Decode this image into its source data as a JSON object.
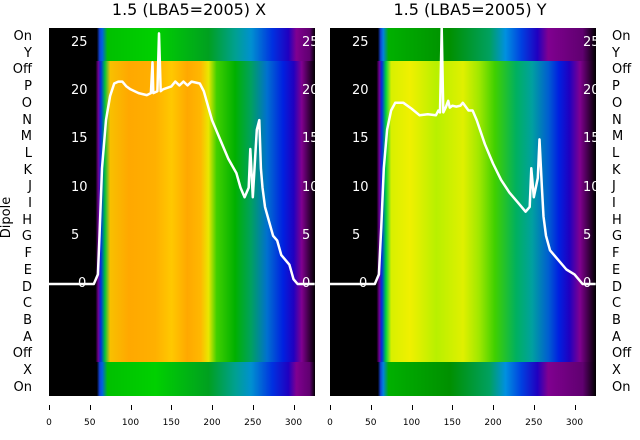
{
  "chart_data": [
    {
      "type": "line",
      "title": "1.5 (LBA5=2005) X",
      "ylabel": "Dipole",
      "xlim": [
        0,
        326
      ],
      "ylim": [
        0,
        25
      ],
      "x_ticks": [
        "0",
        "50",
        "100",
        "150",
        "200",
        "250",
        "300"
      ],
      "y_ticks": [
        "0",
        "5",
        "10",
        "15",
        "20",
        "25"
      ],
      "row_labels": [
        "On",
        "Y",
        "Off",
        "P",
        "O",
        "N",
        "M",
        "L",
        "K",
        "J",
        "I",
        "H",
        "G",
        "F",
        "E",
        "D",
        "C",
        "B",
        "A",
        "Off",
        "X",
        "On"
      ],
      "series": [
        {
          "name": "X",
          "color": "#ffffff",
          "points": [
            [
              0,
              0
            ],
            [
              55,
              0
            ],
            [
              60,
              1
            ],
            [
              62,
              5
            ],
            [
              65,
              12
            ],
            [
              70,
              17
            ],
            [
              75,
              19.5
            ],
            [
              80,
              20.8
            ],
            [
              85,
              21
            ],
            [
              90,
              21
            ],
            [
              95,
              20.5
            ],
            [
              100,
              20.2
            ],
            [
              110,
              19.8
            ],
            [
              120,
              19.6
            ],
            [
              125,
              19.8
            ],
            [
              127,
              23
            ],
            [
              128,
              19.8
            ],
            [
              133,
              20
            ],
            [
              135,
              26
            ],
            [
              137,
              20
            ],
            [
              140,
              20.2
            ],
            [
              150,
              20.5
            ],
            [
              155,
              21
            ],
            [
              160,
              20.6
            ],
            [
              165,
              21
            ],
            [
              170,
              20.6
            ],
            [
              175,
              21
            ],
            [
              185,
              20.8
            ],
            [
              190,
              20
            ],
            [
              200,
              17
            ],
            [
              210,
              15
            ],
            [
              220,
              13
            ],
            [
              230,
              11.5
            ],
            [
              235,
              10
            ],
            [
              240,
              9
            ],
            [
              245,
              10
            ],
            [
              247,
              14
            ],
            [
              250,
              9
            ],
            [
              255,
              16
            ],
            [
              258,
              17
            ],
            [
              260,
              12
            ],
            [
              262,
              10
            ],
            [
              265,
              8
            ],
            [
              270,
              6.5
            ],
            [
              275,
              5
            ],
            [
              280,
              4.5
            ],
            [
              285,
              3
            ],
            [
              290,
              2.5
            ],
            [
              295,
              2
            ],
            [
              300,
              0.5
            ],
            [
              305,
              0
            ],
            [
              326,
              0
            ]
          ]
        }
      ]
    },
    {
      "type": "line",
      "title": "1.5 (LBA5=2005) Y",
      "xlim": [
        0,
        326
      ],
      "ylim": [
        0,
        25
      ],
      "x_ticks": [
        "0",
        "50",
        "100",
        "150",
        "200",
        "250",
        "300"
      ],
      "y_ticks": [
        "0",
        "5",
        "10",
        "15",
        "20",
        "25"
      ],
      "row_labels": [
        "On",
        "Y",
        "Off",
        "P",
        "O",
        "N",
        "M",
        "L",
        "K",
        "J",
        "I",
        "H",
        "G",
        "F",
        "E",
        "D",
        "C",
        "B",
        "A",
        "Off",
        "X",
        "On"
      ],
      "series": [
        {
          "name": "Y",
          "color": "#ffffff",
          "points": [
            [
              0,
              0
            ],
            [
              55,
              0
            ],
            [
              60,
              1
            ],
            [
              63,
              6
            ],
            [
              66,
              12
            ],
            [
              70,
              16
            ],
            [
              75,
              18
            ],
            [
              80,
              18.8
            ],
            [
              90,
              18.8
            ],
            [
              100,
              18.2
            ],
            [
              110,
              17.5
            ],
            [
              120,
              17.6
            ],
            [
              130,
              17.5
            ],
            [
              133,
              18
            ],
            [
              135,
              17.8
            ],
            [
              137,
              27
            ],
            [
              139,
              17.8
            ],
            [
              142,
              18.3
            ],
            [
              145,
              19
            ],
            [
              147,
              18.3
            ],
            [
              150,
              18.5
            ],
            [
              155,
              18.4
            ],
            [
              160,
              18.5
            ],
            [
              163,
              18.8
            ],
            [
              170,
              18
            ],
            [
              175,
              18
            ],
            [
              180,
              17
            ],
            [
              190,
              14.5
            ],
            [
              200,
              12.5
            ],
            [
              210,
              10.8
            ],
            [
              220,
              9.5
            ],
            [
              230,
              8.5
            ],
            [
              240,
              7.5
            ],
            [
              245,
              8
            ],
            [
              247,
              12
            ],
            [
              250,
              9
            ],
            [
              255,
              11
            ],
            [
              257,
              15
            ],
            [
              260,
              10
            ],
            [
              262,
              7
            ],
            [
              265,
              5
            ],
            [
              270,
              3.5
            ],
            [
              280,
              2.5
            ],
            [
              290,
              1.5
            ],
            [
              300,
              1
            ],
            [
              310,
              0
            ],
            [
              326,
              0
            ]
          ]
        }
      ]
    }
  ]
}
